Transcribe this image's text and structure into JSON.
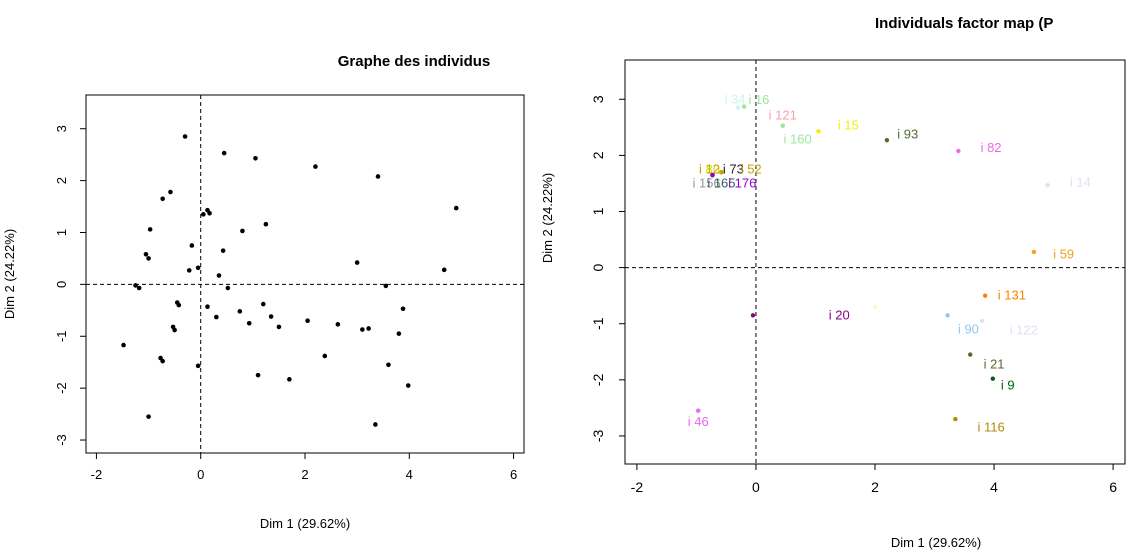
{
  "chart_data": [
    {
      "type": "scatter",
      "title": "Graphe des individus",
      "xlabel": "Dim 1 (29.62%)",
      "ylabel": "Dim 2 (24.22%)",
      "xlim": [
        -2.2,
        6.2
      ],
      "ylim": [
        -3.25,
        3.65
      ],
      "xticks": [
        "-2",
        "0",
        "2",
        "4",
        "6"
      ],
      "yticks": [
        "-3",
        "-2",
        "-1",
        "0",
        "1",
        "2",
        "3"
      ],
      "grid": false,
      "reference_lines": {
        "x": 0,
        "y": 0,
        "style": "dashed"
      },
      "points": [
        {
          "x": -1.48,
          "y": -1.17
        },
        {
          "x": -1.25,
          "y": -0.02
        },
        {
          "x": -1.18,
          "y": -0.07
        },
        {
          "x": -1.05,
          "y": 0.58
        },
        {
          "x": -1.0,
          "y": 0.5
        },
        {
          "x": -0.97,
          "y": 1.06
        },
        {
          "x": -1.0,
          "y": -2.55
        },
        {
          "x": -0.77,
          "y": -1.42
        },
        {
          "x": -0.73,
          "y": -1.48
        },
        {
          "x": -0.73,
          "y": 1.65
        },
        {
          "x": -0.58,
          "y": 1.78
        },
        {
          "x": -0.53,
          "y": -0.82
        },
        {
          "x": -0.5,
          "y": -0.88
        },
        {
          "x": -0.45,
          "y": -0.35
        },
        {
          "x": -0.42,
          "y": -0.4
        },
        {
          "x": -0.3,
          "y": 2.85
        },
        {
          "x": -0.22,
          "y": 0.27
        },
        {
          "x": -0.17,
          "y": 0.75
        },
        {
          "x": -0.05,
          "y": 0.32
        },
        {
          "x": -0.05,
          "y": -1.57
        },
        {
          "x": 0.05,
          "y": 1.35
        },
        {
          "x": 0.13,
          "y": 1.43
        },
        {
          "x": 0.17,
          "y": 1.37
        },
        {
          "x": 0.13,
          "y": -0.43
        },
        {
          "x": 0.3,
          "y": -0.63
        },
        {
          "x": 0.35,
          "y": 0.17
        },
        {
          "x": 0.43,
          "y": 0.65
        },
        {
          "x": 0.45,
          "y": 2.53
        },
        {
          "x": 0.52,
          "y": -0.07
        },
        {
          "x": 0.75,
          "y": -0.52
        },
        {
          "x": 0.8,
          "y": 1.03
        },
        {
          "x": 0.93,
          "y": -0.75
        },
        {
          "x": 1.05,
          "y": 2.43
        },
        {
          "x": 1.1,
          "y": -1.75
        },
        {
          "x": 1.2,
          "y": -0.38
        },
        {
          "x": 1.25,
          "y": 1.16
        },
        {
          "x": 1.35,
          "y": -0.62
        },
        {
          "x": 1.5,
          "y": -0.82
        },
        {
          "x": 1.7,
          "y": -1.83
        },
        {
          "x": 2.05,
          "y": -0.7
        },
        {
          "x": 2.2,
          "y": 2.27
        },
        {
          "x": 2.38,
          "y": -1.38
        },
        {
          "x": 2.63,
          "y": -0.77
        },
        {
          "x": 3.0,
          "y": 0.42
        },
        {
          "x": 3.1,
          "y": -0.87
        },
        {
          "x": 3.22,
          "y": -0.85
        },
        {
          "x": 3.35,
          "y": -2.7
        },
        {
          "x": 3.4,
          "y": 2.08
        },
        {
          "x": 3.55,
          "y": -0.03
        },
        {
          "x": 3.6,
          "y": -1.55
        },
        {
          "x": 3.8,
          "y": -0.95
        },
        {
          "x": 3.88,
          "y": -0.47
        },
        {
          "x": 3.98,
          "y": -1.95
        },
        {
          "x": 4.67,
          "y": 0.28
        },
        {
          "x": 4.9,
          "y": 1.47
        }
      ]
    },
    {
      "type": "scatter",
      "title": "Individuals factor map (P",
      "xlabel": "Dim 1 (29.62%)",
      "ylabel": "Dim 2 (24.22%)",
      "xlim": [
        -2.2,
        6.2
      ],
      "ylim": [
        -3.5,
        3.7
      ],
      "xticks": [
        "-2",
        "0",
        "2",
        "4",
        "6"
      ],
      "yticks": [
        "-3",
        "-2",
        "-1",
        "0",
        "1",
        "2",
        "3"
      ],
      "grid": false,
      "reference_lines": {
        "x": 0,
        "y": 0,
        "style": "dashed"
      },
      "points": [
        {
          "x": -0.3,
          "y": 2.85,
          "label": "i 34",
          "label_dx": -0.05,
          "label_dy": 0.15,
          "color": "#c8f5f5"
        },
        {
          "x": -0.2,
          "y": 2.87,
          "label": "i 16",
          "label_dx": 0.25,
          "label_dy": 0.12,
          "color": "#98e898"
        },
        {
          "x": 0.45,
          "y": 2.53,
          "label": "i 121",
          "label_dx": 0.0,
          "label_dy": 0.18,
          "color": "#f5a0a8"
        },
        {
          "x": 0.45,
          "y": 2.53,
          "label": "i 160",
          "label_dx": 0.25,
          "label_dy": -0.25,
          "color": "#98e898"
        },
        {
          "x": 1.05,
          "y": 2.43,
          "label": "i 15",
          "label_dx": 0.5,
          "label_dy": 0.1,
          "color": "#f0f000"
        },
        {
          "x": 2.2,
          "y": 2.27,
          "label": "i 93",
          "label_dx": 0.35,
          "label_dy": 0.1,
          "color": "#556b2f"
        },
        {
          "x": 3.4,
          "y": 2.08,
          "label": "i 82",
          "label_dx": 0.55,
          "label_dy": 0.05,
          "color": "#ee66ee"
        },
        {
          "x": 4.9,
          "y": 1.47,
          "label": "i 14",
          "label_dx": 0.55,
          "label_dy": 0.05,
          "color": "#e0e0f5"
        },
        {
          "x": -0.73,
          "y": 1.65,
          "label": "i 80",
          "label_dx": -0.05,
          "label_dy": 0.1,
          "color": "#e0e000"
        },
        {
          "x": -0.73,
          "y": 1.65,
          "label": "i 73",
          "label_dx": 0.35,
          "label_dy": 0.1,
          "color": "#222222"
        },
        {
          "x": -0.58,
          "y": 1.7,
          "label": "i 52",
          "label_dx": 0.5,
          "label_dy": 0.05,
          "color": "#c0a000"
        },
        {
          "x": -0.58,
          "y": 1.7,
          "label": "i 12",
          "label_dx": -0.2,
          "label_dy": 0.05,
          "color": "#c8a000"
        },
        {
          "x": -0.73,
          "y": 1.65,
          "label": "i 156",
          "label_dx": -0.1,
          "label_dy": -0.15,
          "color": "#999999"
        },
        {
          "x": -0.73,
          "y": 1.65,
          "label": "i 165",
          "label_dx": 0.15,
          "label_dy": -0.15,
          "color": "#2b5f5f"
        },
        {
          "x": -0.73,
          "y": 1.65,
          "label": "i 176",
          "label_dx": 0.5,
          "label_dy": -0.15,
          "color": "#9400d3"
        },
        {
          "x": 4.67,
          "y": 0.28,
          "label": "i 59",
          "label_dx": 0.5,
          "label_dy": -0.05,
          "color": "#f5a020"
        },
        {
          "x": 3.85,
          "y": -0.5,
          "label": "i 131",
          "label_dx": 0.45,
          "label_dy": 0.0,
          "color": "#ff8000"
        },
        {
          "x": 2.0,
          "y": -0.7,
          "label": "",
          "label_dx": 0.0,
          "label_dy": 0.0,
          "color": "#f8f8c0"
        },
        {
          "x": -0.05,
          "y": -0.85,
          "label": "i 20",
          "label_dx": 1.45,
          "label_dy": 0.0,
          "color": "#8b008b"
        },
        {
          "x": 3.22,
          "y": -0.85,
          "label": "i 90",
          "label_dx": 0.35,
          "label_dy": -0.25,
          "color": "#90c8f0"
        },
        {
          "x": 3.8,
          "y": -0.95,
          "label": "i 122",
          "label_dx": 0.7,
          "label_dy": -0.17,
          "color": "#e0e0f5"
        },
        {
          "x": 3.6,
          "y": -1.55,
          "label": "i 21",
          "label_dx": 0.4,
          "label_dy": -0.18,
          "color": "#556b2f"
        },
        {
          "x": 3.98,
          "y": -1.98,
          "label": "i 9",
          "label_dx": 0.25,
          "label_dy": -0.12,
          "color": "#006400"
        },
        {
          "x": -0.97,
          "y": -2.55,
          "label": "i 46",
          "label_dx": 0.0,
          "label_dy": -0.2,
          "color": "#ee66ee"
        },
        {
          "x": 3.35,
          "y": -2.7,
          "label": "i 116",
          "label_dx": 0.6,
          "label_dy": -0.15,
          "color": "#b8860b"
        }
      ]
    }
  ]
}
